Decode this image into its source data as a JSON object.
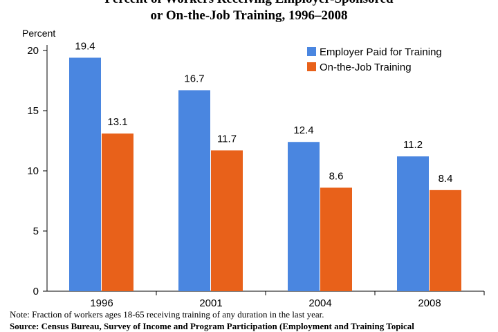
{
  "chart_data": {
    "type": "bar",
    "title_line1": "Percent of Workers Receiving Employer-Sponsored",
    "title_line2": "or On-the-Job Training, 1996–2008",
    "ylabel": "Percent",
    "ylim": [
      0,
      20
    ],
    "yticks": [
      0,
      5,
      10,
      15,
      20
    ],
    "categories": [
      "1996",
      "2001",
      "2004",
      "2008"
    ],
    "series": [
      {
        "name": "Employer Paid for Training",
        "color": "#4a86e0",
        "values": [
          19.4,
          16.7,
          12.4,
          11.2
        ]
      },
      {
        "name": "On-the-Job Training",
        "color": "#e8611a",
        "values": [
          13.1,
          11.7,
          8.6,
          8.4
        ]
      }
    ],
    "legend_position": "top-right",
    "grid": false
  },
  "notes": {
    "note": "Note: Fraction of workers ages 18-65 receiving training of any duration in the last year.",
    "source": "Source: Census Bureau, Survey of Income and Program Participation (Employment and Training Topical"
  }
}
